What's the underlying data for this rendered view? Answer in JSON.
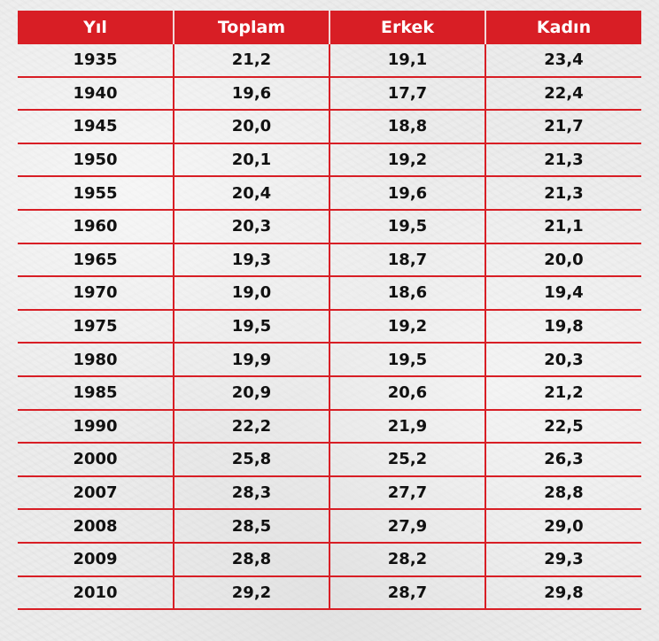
{
  "colors": {
    "header_bg": "#d81e25",
    "header_text": "#ffffff",
    "grid_line": "#d81e25",
    "cell_text": "#111111",
    "background": "#ececec"
  },
  "chart_data": {
    "type": "table",
    "columns": [
      "Yıl",
      "Toplam",
      "Erkek",
      "Kadın"
    ],
    "rows": [
      [
        "1935",
        "21,2",
        "19,1",
        "23,4"
      ],
      [
        "1940",
        "19,6",
        "17,7",
        "22,4"
      ],
      [
        "1945",
        "20,0",
        "18,8",
        "21,7"
      ],
      [
        "1950",
        "20,1",
        "19,2",
        "21,3"
      ],
      [
        "1955",
        "20,4",
        "19,6",
        "21,3"
      ],
      [
        "1960",
        "20,3",
        "19,5",
        "21,1"
      ],
      [
        "1965",
        "19,3",
        "18,7",
        "20,0"
      ],
      [
        "1970",
        "19,0",
        "18,6",
        "19,4"
      ],
      [
        "1975",
        "19,5",
        "19,2",
        "19,8"
      ],
      [
        "1980",
        "19,9",
        "19,5",
        "20,3"
      ],
      [
        "1985",
        "20,9",
        "20,6",
        "21,2"
      ],
      [
        "1990",
        "22,2",
        "21,9",
        "22,5"
      ],
      [
        "2000",
        "25,8",
        "25,2",
        "26,3"
      ],
      [
        "2007",
        "28,3",
        "27,7",
        "28,8"
      ],
      [
        "2008",
        "28,5",
        "27,9",
        "29,0"
      ],
      [
        "2009",
        "28,8",
        "28,2",
        "29,3"
      ],
      [
        "2010",
        "29,2",
        "28,7",
        "29,8"
      ]
    ]
  }
}
